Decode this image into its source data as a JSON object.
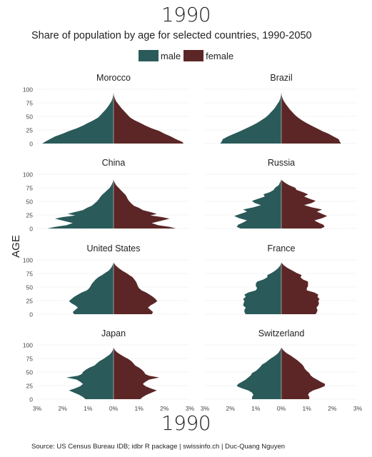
{
  "header": {
    "title": "1990",
    "subtitle": "Share of population by age for selected countries, 1990-2050"
  },
  "footer": {
    "year_label": "1990",
    "caption": "Source: US Census Bureau IDB; idbr R package | swissinfo.ch | Duc-Quang Nguyen"
  },
  "legend": [
    {
      "label": "male",
      "color": "#2a5a5a"
    },
    {
      "label": "female",
      "color": "#5c2626"
    }
  ],
  "chart_data": {
    "type": "area",
    "ylabel": "AGE",
    "y_ticks": [
      0,
      25,
      50,
      75,
      100
    ],
    "ylim": [
      0,
      100
    ],
    "x_ticks": [
      "3%",
      "2%",
      "1%",
      "0%",
      "1%",
      "2%",
      "3%"
    ],
    "x_tick_values": [
      -3,
      -2,
      -1,
      0,
      1,
      2,
      3
    ],
    "xlim": [
      -3,
      3
    ],
    "grid": true,
    "legend_position": "top-center",
    "panels": [
      {
        "name": "Morocco",
        "age": [
          0,
          3,
          8,
          13,
          18,
          23,
          28,
          33,
          38,
          43,
          48,
          53,
          58,
          63,
          68,
          73,
          78,
          83,
          88,
          93
        ],
        "male": [
          2.8,
          2.7,
          2.5,
          2.3,
          2.0,
          1.75,
          1.45,
          1.2,
          1.0,
          0.78,
          0.6,
          0.5,
          0.4,
          0.3,
          0.22,
          0.15,
          0.08,
          0.04,
          0.02,
          0.0
        ],
        "female": [
          2.75,
          2.7,
          2.45,
          2.25,
          2.0,
          1.8,
          1.5,
          1.25,
          1.05,
          0.82,
          0.65,
          0.55,
          0.45,
          0.35,
          0.26,
          0.18,
          0.1,
          0.05,
          0.02,
          0.0
        ]
      },
      {
        "name": "Brazil",
        "age": [
          0,
          3,
          8,
          13,
          18,
          23,
          28,
          33,
          38,
          43,
          48,
          53,
          58,
          63,
          68,
          73,
          78,
          83,
          88,
          93
        ],
        "male": [
          2.4,
          2.35,
          2.3,
          2.1,
          1.85,
          1.6,
          1.38,
          1.15,
          0.95,
          0.78,
          0.62,
          0.5,
          0.4,
          0.3,
          0.22,
          0.15,
          0.08,
          0.04,
          0.02,
          0.0
        ],
        "female": [
          2.35,
          2.3,
          2.25,
          2.05,
          1.85,
          1.6,
          1.4,
          1.18,
          0.98,
          0.8,
          0.65,
          0.53,
          0.43,
          0.33,
          0.25,
          0.17,
          0.1,
          0.05,
          0.02,
          0.0
        ]
      },
      {
        "name": "China",
        "age": [
          0,
          3,
          6,
          10,
          14,
          18,
          21,
          24,
          27,
          30,
          34,
          38,
          42,
          46,
          50,
          54,
          58,
          62,
          66,
          70,
          75,
          80,
          85,
          90
        ],
        "male": [
          2.6,
          2.3,
          1.85,
          1.6,
          1.95,
          2.3,
          2.0,
          1.5,
          1.8,
          1.55,
          1.2,
          1.05,
          0.85,
          0.75,
          0.65,
          0.58,
          0.52,
          0.45,
          0.35,
          0.26,
          0.15,
          0.08,
          0.03,
          0.0
        ],
        "female": [
          2.45,
          2.2,
          1.75,
          1.5,
          1.85,
          2.2,
          1.9,
          1.45,
          1.7,
          1.48,
          1.15,
          1.0,
          0.8,
          0.7,
          0.62,
          0.56,
          0.52,
          0.47,
          0.38,
          0.3,
          0.2,
          0.1,
          0.04,
          0.0
        ]
      },
      {
        "name": "Russia",
        "age": [
          0,
          3,
          7,
          11,
          15,
          19,
          23,
          27,
          31,
          35,
          39,
          43,
          47,
          51,
          55,
          59,
          63,
          67,
          71,
          75,
          80,
          85,
          90
        ],
        "male": [
          1.6,
          1.75,
          1.7,
          1.5,
          1.35,
          1.65,
          1.85,
          1.6,
          1.35,
          1.5,
          1.1,
          0.8,
          1.05,
          1.15,
          0.9,
          0.65,
          0.7,
          0.45,
          0.3,
          0.25,
          0.1,
          0.05,
          0.0
        ],
        "female": [
          1.55,
          1.7,
          1.65,
          1.45,
          1.3,
          1.6,
          1.8,
          1.6,
          1.4,
          1.6,
          1.2,
          0.9,
          1.2,
          1.35,
          1.1,
          0.9,
          1.05,
          0.85,
          0.6,
          0.55,
          0.3,
          0.12,
          0.0
        ]
      },
      {
        "name": "United States",
        "age": [
          0,
          4,
          8,
          12,
          16,
          20,
          24,
          28,
          32,
          36,
          40,
          44,
          48,
          52,
          56,
          60,
          64,
          68,
          72,
          76,
          80,
          85,
          90,
          95
        ],
        "male": [
          1.55,
          1.6,
          1.5,
          1.4,
          1.5,
          1.65,
          1.75,
          1.65,
          1.55,
          1.4,
          1.25,
          1.05,
          0.95,
          0.9,
          0.85,
          0.78,
          0.7,
          0.6,
          0.45,
          0.33,
          0.2,
          0.1,
          0.04,
          0.0
        ],
        "female": [
          1.5,
          1.55,
          1.45,
          1.35,
          1.45,
          1.6,
          1.72,
          1.65,
          1.55,
          1.42,
          1.28,
          1.1,
          1.0,
          0.95,
          0.92,
          0.88,
          0.82,
          0.75,
          0.62,
          0.5,
          0.35,
          0.2,
          0.08,
          0.0
        ]
      },
      {
        "name": "France",
        "age": [
          0,
          4,
          8,
          12,
          16,
          20,
          24,
          28,
          32,
          36,
          40,
          44,
          48,
          52,
          56,
          60,
          64,
          68,
          72,
          76,
          80,
          85,
          90,
          95
        ],
        "male": [
          1.4,
          1.45,
          1.45,
          1.4,
          1.5,
          1.48,
          1.45,
          1.5,
          1.4,
          1.45,
          1.3,
          1.0,
          0.95,
          1.0,
          1.0,
          0.95,
          0.7,
          0.55,
          0.55,
          0.38,
          0.25,
          0.12,
          0.04,
          0.0
        ],
        "female": [
          1.35,
          1.4,
          1.42,
          1.38,
          1.45,
          1.48,
          1.45,
          1.5,
          1.42,
          1.45,
          1.3,
          1.0,
          1.0,
          1.05,
          1.05,
          1.05,
          0.85,
          0.75,
          0.8,
          0.6,
          0.45,
          0.25,
          0.1,
          0.0
        ]
      },
      {
        "name": "Japan",
        "age": [
          0,
          4,
          8,
          12,
          16,
          20,
          24,
          28,
          32,
          36,
          40,
          43,
          46,
          50,
          54,
          58,
          62,
          66,
          70,
          74,
          78,
          82,
          86,
          90,
          95
        ],
        "male": [
          1.1,
          1.2,
          1.35,
          1.55,
          1.75,
          1.5,
          1.3,
          1.2,
          1.3,
          1.45,
          1.85,
          1.4,
          1.25,
          1.2,
          1.1,
          0.95,
          0.75,
          0.65,
          0.55,
          0.4,
          0.28,
          0.16,
          0.08,
          0.03,
          0.0
        ],
        "female": [
          1.05,
          1.15,
          1.3,
          1.5,
          1.7,
          1.45,
          1.25,
          1.15,
          1.25,
          1.4,
          1.8,
          1.4,
          1.25,
          1.2,
          1.12,
          1.0,
          0.85,
          0.78,
          0.7,
          0.58,
          0.42,
          0.28,
          0.15,
          0.06,
          0.0
        ]
      },
      {
        "name": "Switzerland",
        "age": [
          0,
          4,
          8,
          12,
          16,
          20,
          24,
          28,
          32,
          36,
          40,
          44,
          48,
          52,
          56,
          60,
          64,
          68,
          72,
          76,
          80,
          85,
          90,
          95
        ],
        "male": [
          1.15,
          1.15,
          1.1,
          1.15,
          1.3,
          1.55,
          1.75,
          1.7,
          1.55,
          1.4,
          1.3,
          1.2,
          1.15,
          1.0,
          0.9,
          0.82,
          0.75,
          0.6,
          0.5,
          0.38,
          0.25,
          0.12,
          0.05,
          0.0
        ],
        "female": [
          1.1,
          1.1,
          1.05,
          1.1,
          1.25,
          1.5,
          1.7,
          1.72,
          1.55,
          1.4,
          1.25,
          1.15,
          1.1,
          1.0,
          0.92,
          0.88,
          0.82,
          0.72,
          0.62,
          0.5,
          0.38,
          0.2,
          0.08,
          0.0
        ]
      }
    ]
  }
}
